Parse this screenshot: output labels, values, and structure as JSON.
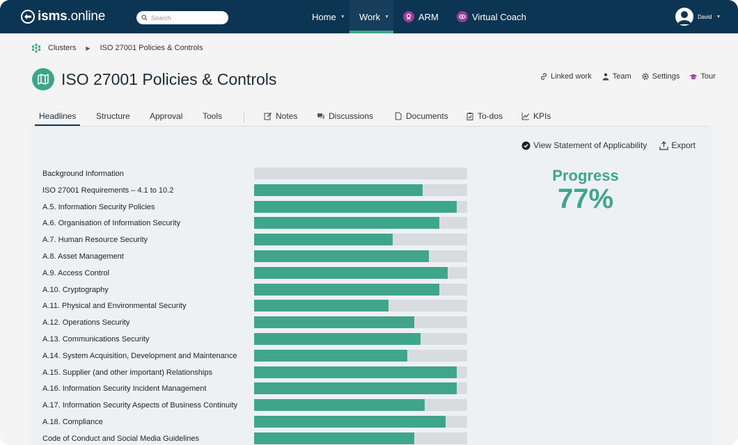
{
  "app": {
    "logo_bold": "isms",
    "logo_rest": ".online",
    "search_placeholder": "Search"
  },
  "nav": {
    "home": "Home",
    "work": "Work",
    "arm": "ARM",
    "coach": "Virtual Coach",
    "user": "David"
  },
  "breadcrumb": {
    "root": "Clusters",
    "current": "ISO 27001 Policies & Controls"
  },
  "page": {
    "title": "ISO 27001 Policies & Controls"
  },
  "actions": {
    "linked": "Linked work",
    "team": "Team",
    "settings": "Settings",
    "tour": "Tour"
  },
  "tabs": {
    "headlines": "Headlines",
    "structure": "Structure",
    "approval": "Approval",
    "tools": "Tools",
    "notes": "Notes",
    "discussions": "Discussions",
    "documents": "Documents",
    "todos": "To-dos",
    "kpis": "KPIs"
  },
  "panel": {
    "soa": "View Statement of Applicability",
    "export": "Export",
    "progress_label": "Progress",
    "progress_value": "77%"
  },
  "colors": {
    "nav_bg": "#0c3553",
    "accent_green": "#3fa68b",
    "track_grey": "#d9dcdf",
    "badge_purple": "#9a3e9e"
  },
  "rows": [
    {
      "label": "Background Information",
      "progress": 0
    },
    {
      "label": "ISO 27001 Requirements – 4.1 to 10.2",
      "progress": 0.79
    },
    {
      "label": "A.5. Information Security Policies",
      "progress": 0.95
    },
    {
      "label": "A.6. Organisation of Information Security",
      "progress": 0.87
    },
    {
      "label": "A.7. Human Resource Security",
      "progress": 0.65
    },
    {
      "label": "A.8. Asset Management",
      "progress": 0.82
    },
    {
      "label": "A.9. Access Control",
      "progress": 0.91
    },
    {
      "label": "A.10. Cryptography",
      "progress": 0.87
    },
    {
      "label": "A.11. Physical and Environmental Security",
      "progress": 0.63
    },
    {
      "label": "A.12. Operations Security",
      "progress": 0.75
    },
    {
      "label": "A.13. Communications Security",
      "progress": 0.78
    },
    {
      "label": "A.14. System Acquisition, Development and Maintenance",
      "progress": 0.72
    },
    {
      "label": "A.15. Supplier (and other important) Relationships",
      "progress": 0.95
    },
    {
      "label": "A.16. Information Security Incident Management",
      "progress": 0.95
    },
    {
      "label": "A.17. Information Security Aspects of Business Continuity",
      "progress": 0.8
    },
    {
      "label": "A.18. Compliance",
      "progress": 0.9
    },
    {
      "label": "Code of Conduct and Social Media Guidelines",
      "progress": 0.75
    }
  ]
}
